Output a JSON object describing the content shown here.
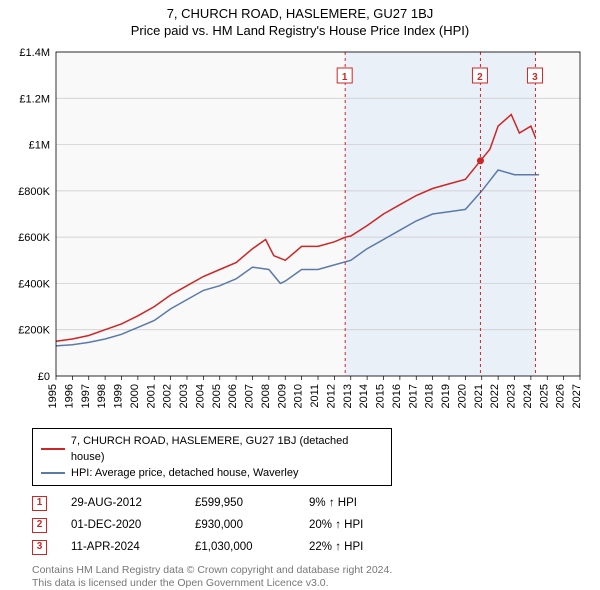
{
  "titles": {
    "line1": "7, CHURCH ROAD, HASLEMERE, GU27 1BJ",
    "line2": "Price paid vs. HM Land Registry's House Price Index (HPI)"
  },
  "chart": {
    "type": "line",
    "background_color": "#ffffff",
    "plot_background": "#f9f9f9",
    "shaded_band_color": "#eaf0f8",
    "shaded_band_x": [
      2012.66,
      2024.28
    ],
    "xlim": [
      1995,
      2027
    ],
    "ylim": [
      0,
      1400000
    ],
    "yticks": [
      0,
      200000,
      400000,
      600000,
      800000,
      1000000,
      1200000,
      1400000
    ],
    "ytick_labels": [
      "£0",
      "£200K",
      "£400K",
      "£600K",
      "£800K",
      "£1M",
      "£1.2M",
      "£1.4M"
    ],
    "xticks": [
      1995,
      1996,
      1997,
      1998,
      1999,
      2000,
      2001,
      2002,
      2003,
      2004,
      2005,
      2006,
      2007,
      2008,
      2009,
      2010,
      2011,
      2012,
      2013,
      2014,
      2015,
      2016,
      2017,
      2018,
      2019,
      2020,
      2021,
      2022,
      2023,
      2024,
      2025,
      2026,
      2027
    ],
    "grid_color": "#c8c8c8",
    "series": {
      "price_paid": {
        "color": "#cd2626",
        "width": 1.5,
        "points": [
          [
            1995,
            150000
          ],
          [
            1996,
            160000
          ],
          [
            1997,
            175000
          ],
          [
            1998,
            200000
          ],
          [
            1999,
            225000
          ],
          [
            2000,
            260000
          ],
          [
            2001,
            300000
          ],
          [
            2002,
            350000
          ],
          [
            2003,
            390000
          ],
          [
            2004,
            430000
          ],
          [
            2005,
            460000
          ],
          [
            2006,
            490000
          ],
          [
            2007,
            550000
          ],
          [
            2007.8,
            590000
          ],
          [
            2008.3,
            520000
          ],
          [
            2009,
            500000
          ],
          [
            2010,
            560000
          ],
          [
            2011,
            560000
          ],
          [
            2012,
            580000
          ],
          [
            2012.66,
            599950
          ],
          [
            2013,
            605000
          ],
          [
            2014,
            650000
          ],
          [
            2015,
            700000
          ],
          [
            2016,
            740000
          ],
          [
            2017,
            780000
          ],
          [
            2018,
            810000
          ],
          [
            2019,
            830000
          ],
          [
            2020,
            850000
          ],
          [
            2020.92,
            930000
          ],
          [
            2021.5,
            980000
          ],
          [
            2022,
            1080000
          ],
          [
            2022.8,
            1130000
          ],
          [
            2023.3,
            1050000
          ],
          [
            2024,
            1080000
          ],
          [
            2024.28,
            1030000
          ]
        ],
        "sale_markers": [
          {
            "x": 2020.92,
            "y": 930000
          }
        ]
      },
      "hpi": {
        "color": "#5b7aa8",
        "width": 1.5,
        "points": [
          [
            1995,
            130000
          ],
          [
            1996,
            135000
          ],
          [
            1997,
            145000
          ],
          [
            1998,
            160000
          ],
          [
            1999,
            180000
          ],
          [
            2000,
            210000
          ],
          [
            2001,
            240000
          ],
          [
            2002,
            290000
          ],
          [
            2003,
            330000
          ],
          [
            2004,
            370000
          ],
          [
            2005,
            390000
          ],
          [
            2006,
            420000
          ],
          [
            2007,
            470000
          ],
          [
            2008,
            460000
          ],
          [
            2008.7,
            400000
          ],
          [
            2009,
            410000
          ],
          [
            2010,
            460000
          ],
          [
            2011,
            460000
          ],
          [
            2012,
            480000
          ],
          [
            2013,
            500000
          ],
          [
            2014,
            550000
          ],
          [
            2015,
            590000
          ],
          [
            2016,
            630000
          ],
          [
            2017,
            670000
          ],
          [
            2018,
            700000
          ],
          [
            2019,
            710000
          ],
          [
            2020,
            720000
          ],
          [
            2021,
            800000
          ],
          [
            2022,
            890000
          ],
          [
            2023,
            870000
          ],
          [
            2024,
            870000
          ],
          [
            2024.5,
            870000
          ]
        ]
      }
    },
    "event_markers": [
      {
        "n": "1",
        "x": 2012.66
      },
      {
        "n": "2",
        "x": 2020.92
      },
      {
        "n": "3",
        "x": 2024.28
      }
    ],
    "marker_box_border": "#cd2626",
    "marker_box_text": "#cd2626",
    "marker_line_color": "#cd2626",
    "marker_line_dash": "3,3"
  },
  "legend": {
    "items": [
      {
        "color": "#cd2626",
        "label": "7, CHURCH ROAD, HASLEMERE, GU27 1BJ (detached house)"
      },
      {
        "color": "#5b7aa8",
        "label": "HPI: Average price, detached house, Waverley"
      }
    ]
  },
  "markers_table": [
    {
      "n": "1",
      "date": "29-AUG-2012",
      "price": "£599,950",
      "pct": "9% ↑ HPI"
    },
    {
      "n": "2",
      "date": "01-DEC-2020",
      "price": "£930,000",
      "pct": "20% ↑ HPI"
    },
    {
      "n": "3",
      "date": "11-APR-2024",
      "price": "£1,030,000",
      "pct": "22% ↑ HPI"
    }
  ],
  "license": {
    "line1": "Contains HM Land Registry data © Crown copyright and database right 2024.",
    "line2": "This data is licensed under the Open Government Licence v3.0."
  }
}
